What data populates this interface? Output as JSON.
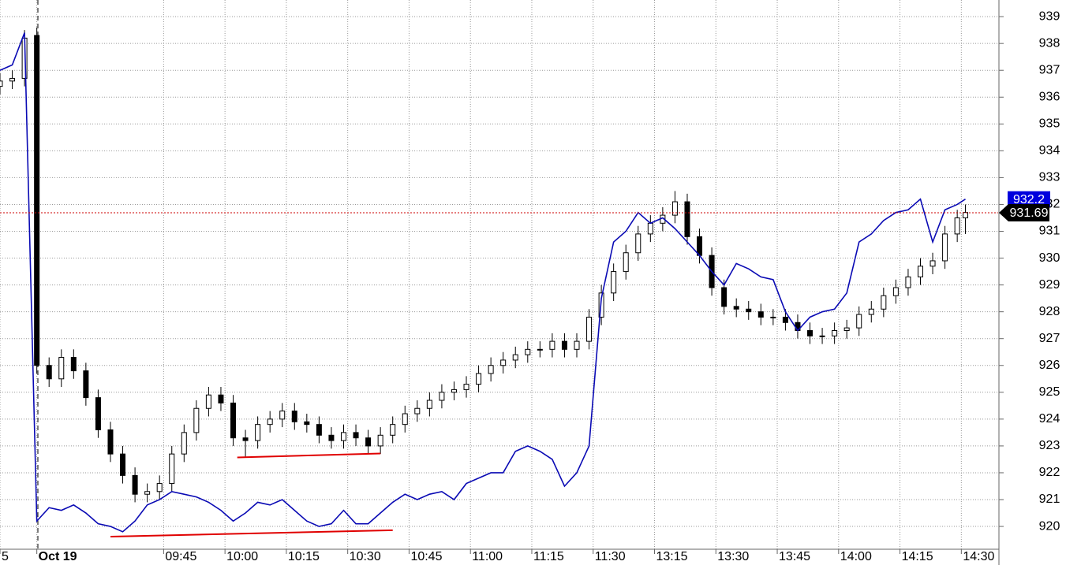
{
  "chart_data": {
    "type": "candlestick",
    "x": [
      0,
      3,
      6,
      9,
      12,
      15,
      18,
      21,
      24,
      27,
      30,
      33,
      36,
      39,
      42,
      45,
      48,
      51,
      54,
      57,
      60,
      63,
      66,
      69,
      72,
      75,
      78,
      81,
      84,
      87,
      90,
      93,
      96,
      99,
      102,
      105,
      108,
      111,
      114,
      117,
      120,
      123,
      126,
      129,
      132,
      135,
      138,
      141,
      144,
      147,
      150,
      153,
      156,
      159,
      162,
      165,
      168,
      171,
      174,
      177,
      180,
      183,
      186,
      189,
      192,
      195,
      198,
      201,
      204,
      207,
      210,
      213,
      216,
      219,
      222,
      225,
      228,
      231,
      234,
      236
    ],
    "open": [
      936.4,
      936.6,
      936.7,
      938.3,
      926.0,
      925.5,
      926.3,
      925.8,
      924.8,
      923.6,
      922.7,
      921.9,
      921.2,
      921.3,
      921.6,
      922.7,
      923.5,
      924.4,
      924.9,
      924.6,
      923.3,
      923.2,
      923.8,
      924.0,
      924.3,
      923.9,
      923.8,
      923.4,
      923.2,
      923.5,
      923.3,
      923.0,
      923.4,
      923.8,
      924.2,
      924.4,
      924.7,
      925.0,
      925.1,
      925.3,
      925.7,
      926.0,
      926.2,
      926.4,
      926.6,
      926.6,
      926.9,
      926.6,
      926.9,
      927.8,
      928.7,
      929.5,
      930.2,
      930.9,
      931.3,
      931.6,
      932.1,
      930.8,
      930.1,
      928.9,
      928.2,
      928.1,
      928.0,
      927.8,
      927.8,
      927.6,
      927.3,
      927.1,
      927.1,
      927.3,
      927.4,
      927.9,
      928.1,
      928.6,
      928.9,
      929.3,
      929.7,
      929.9,
      930.9,
      931.5
    ],
    "high": [
      936.9,
      937.0,
      938.5,
      938.6,
      926.3,
      926.6,
      926.6,
      926.1,
      925.1,
      923.9,
      923.0,
      922.2,
      921.6,
      921.9,
      923.0,
      923.8,
      924.7,
      925.2,
      925.2,
      924.9,
      923.6,
      924.1,
      924.3,
      924.6,
      924.6,
      924.2,
      924.1,
      923.7,
      923.8,
      923.8,
      923.6,
      923.7,
      924.1,
      924.5,
      924.7,
      925.0,
      925.3,
      925.4,
      925.6,
      926.0,
      926.3,
      926.5,
      926.7,
      926.9,
      926.9,
      927.2,
      927.2,
      927.2,
      928.1,
      929.0,
      929.8,
      930.5,
      931.2,
      931.6,
      931.9,
      932.5,
      932.4,
      931.1,
      930.4,
      929.2,
      928.5,
      928.4,
      928.3,
      928.1,
      928.1,
      927.9,
      927.6,
      927.4,
      927.6,
      927.7,
      928.2,
      928.4,
      928.9,
      929.2,
      929.6,
      930.0,
      930.2,
      931.2,
      931.8,
      932.0
    ],
    "low": [
      936.1,
      936.3,
      936.4,
      925.7,
      925.2,
      925.2,
      925.5,
      924.5,
      923.3,
      922.4,
      921.6,
      920.9,
      920.9,
      921.0,
      921.3,
      922.4,
      923.2,
      924.1,
      924.3,
      923.0,
      922.6,
      922.9,
      923.5,
      923.7,
      923.6,
      923.5,
      923.1,
      922.9,
      922.9,
      923.0,
      922.7,
      922.7,
      923.1,
      923.5,
      923.9,
      924.1,
      924.4,
      924.7,
      924.8,
      925.0,
      925.4,
      925.7,
      925.9,
      926.1,
      926.3,
      926.3,
      926.3,
      926.3,
      926.6,
      927.5,
      928.4,
      929.2,
      929.9,
      930.6,
      931.0,
      931.3,
      930.5,
      929.8,
      928.6,
      927.9,
      927.8,
      927.7,
      927.5,
      927.5,
      927.3,
      927.0,
      926.8,
      926.8,
      926.8,
      927.0,
      927.1,
      927.6,
      927.8,
      928.3,
      928.6,
      929.0,
      929.4,
      929.6,
      930.6,
      930.9
    ],
    "close": [
      936.6,
      936.7,
      938.2,
      926.0,
      925.5,
      926.3,
      925.8,
      924.8,
      923.6,
      922.7,
      921.9,
      921.2,
      921.3,
      921.6,
      922.7,
      923.5,
      924.4,
      924.9,
      924.6,
      923.3,
      923.2,
      923.8,
      924.0,
      924.3,
      923.9,
      923.8,
      923.4,
      923.2,
      923.5,
      923.3,
      923.0,
      923.4,
      923.8,
      924.2,
      924.4,
      924.7,
      925.0,
      925.1,
      925.3,
      925.7,
      926.0,
      926.2,
      926.4,
      926.6,
      926.6,
      926.9,
      926.6,
      926.9,
      927.8,
      928.7,
      929.5,
      930.2,
      930.9,
      931.3,
      931.6,
      932.1,
      930.8,
      930.1,
      928.9,
      928.2,
      928.1,
      928.0,
      927.8,
      927.8,
      927.6,
      927.3,
      927.1,
      927.1,
      927.3,
      927.4,
      927.9,
      928.1,
      928.6,
      928.9,
      929.3,
      929.7,
      929.9,
      930.9,
      931.5,
      931.7
    ],
    "up_color": "#ffffff",
    "down_color": "#000000",
    "line": {
      "color": "#0a0ab4",
      "values": [
        937.0,
        937.2,
        938.4,
        920.2,
        920.7,
        920.6,
        920.8,
        920.5,
        920.1,
        920.0,
        919.8,
        920.2,
        920.8,
        921.0,
        921.3,
        921.2,
        921.1,
        920.9,
        920.6,
        920.2,
        920.5,
        920.9,
        920.8,
        921.0,
        920.6,
        920.2,
        920.0,
        920.1,
        920.6,
        920.1,
        920.1,
        920.5,
        920.9,
        921.2,
        921.0,
        921.2,
        921.3,
        921.0,
        921.6,
        921.8,
        922.0,
        922.0,
        922.8,
        923.0,
        922.8,
        922.5,
        921.5,
        922.0,
        923.0,
        928.5,
        930.6,
        931.0,
        931.7,
        931.3,
        931.5,
        931.1,
        930.6,
        930.1,
        929.5,
        929.0,
        929.8,
        929.6,
        929.3,
        929.2,
        928.0,
        927.3,
        927.8,
        928.0,
        928.1,
        928.7,
        930.6,
        930.9,
        931.4,
        931.7,
        931.8,
        932.2,
        930.6,
        931.8,
        932.0,
        932.2
      ]
    },
    "trendline_color": "#e00000",
    "trendlines": [
      {
        "x": [
          58,
          93
        ],
        "y": [
          922.57,
          922.72
        ]
      },
      {
        "x": [
          27,
          96
        ],
        "y": [
          919.62,
          919.86
        ]
      }
    ],
    "markers": [
      {
        "value": 932.2,
        "color": "#0000dd"
      },
      {
        "value": 931.69,
        "color": "#000000",
        "line_color": "#cc0000"
      }
    ],
    "xlim": [
      0,
      244
    ],
    "ylim": [
      919.15,
      939.62
    ],
    "xticks": [
      {
        "value": 0,
        "label": "5"
      },
      {
        "value": 9,
        "label": "Oct 19"
      },
      {
        "value": 40,
        "label": "09:45"
      },
      {
        "value": 55,
        "label": "10:00"
      },
      {
        "value": 70,
        "label": "10:15"
      },
      {
        "value": 85,
        "label": "10:30"
      },
      {
        "value": 100,
        "label": "10:45"
      },
      {
        "value": 115,
        "label": "11:00"
      },
      {
        "value": 130,
        "label": "11:15"
      },
      {
        "value": 145,
        "label": "11:30"
      },
      {
        "value": 160,
        "label": "13:15"
      },
      {
        "value": 175,
        "label": "13:30"
      },
      {
        "value": 190,
        "label": "13:45"
      },
      {
        "value": 205,
        "label": "14:00"
      },
      {
        "value": 220,
        "label": "14:15"
      },
      {
        "value": 235,
        "label": "14:30"
      }
    ],
    "yticks": [
      920,
      921,
      922,
      923,
      924,
      925,
      926,
      927,
      928,
      929,
      930,
      931,
      932,
      933,
      934,
      935,
      936,
      937,
      938,
      939
    ],
    "grid": true
  }
}
